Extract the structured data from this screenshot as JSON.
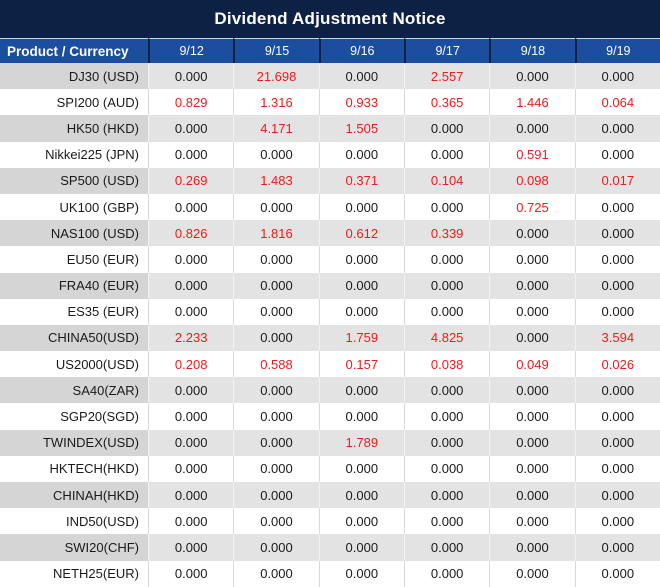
{
  "title": "Dividend Adjustment Notice",
  "table": {
    "product_header": "Product / Currency",
    "date_columns": [
      "9/12",
      "9/15",
      "9/16",
      "9/17",
      "9/18",
      "9/19"
    ],
    "rows": [
      {
        "product": "DJ30 (USD)",
        "values": [
          "0.000",
          "21.698",
          "0.000",
          "2.557",
          "0.000",
          "0.000"
        ]
      },
      {
        "product": "SPI200 (AUD)",
        "values": [
          "0.829",
          "1.316",
          "0.933",
          "0.365",
          "1.446",
          "0.064"
        ]
      },
      {
        "product": "HK50 (HKD)",
        "values": [
          "0.000",
          "4.171",
          "1.505",
          "0.000",
          "0.000",
          "0.000"
        ]
      },
      {
        "product": "Nikkei225 (JPN)",
        "values": [
          "0.000",
          "0.000",
          "0.000",
          "0.000",
          "0.591",
          "0.000"
        ]
      },
      {
        "product": "SP500 (USD)",
        "values": [
          "0.269",
          "1.483",
          "0.371",
          "0.104",
          "0.098",
          "0.017"
        ]
      },
      {
        "product": "UK100 (GBP)",
        "values": [
          "0.000",
          "0.000",
          "0.000",
          "0.000",
          "0.725",
          "0.000"
        ]
      },
      {
        "product": "NAS100 (USD)",
        "values": [
          "0.826",
          "1.816",
          "0.612",
          "0.339",
          "0.000",
          "0.000"
        ]
      },
      {
        "product": "EU50 (EUR)",
        "values": [
          "0.000",
          "0.000",
          "0.000",
          "0.000",
          "0.000",
          "0.000"
        ]
      },
      {
        "product": "FRA40 (EUR)",
        "values": [
          "0.000",
          "0.000",
          "0.000",
          "0.000",
          "0.000",
          "0.000"
        ]
      },
      {
        "product": "ES35 (EUR)",
        "values": [
          "0.000",
          "0.000",
          "0.000",
          "0.000",
          "0.000",
          "0.000"
        ]
      },
      {
        "product": "CHINA50(USD)",
        "values": [
          "2.233",
          "0.000",
          "1.759",
          "4.825",
          "0.000",
          "3.594"
        ]
      },
      {
        "product": "US2000(USD)",
        "values": [
          "0.208",
          "0.588",
          "0.157",
          "0.038",
          "0.049",
          "0.026"
        ]
      },
      {
        "product": "SA40(ZAR)",
        "values": [
          "0.000",
          "0.000",
          "0.000",
          "0.000",
          "0.000",
          "0.000"
        ]
      },
      {
        "product": "SGP20(SGD)",
        "values": [
          "0.000",
          "0.000",
          "0.000",
          "0.000",
          "0.000",
          "0.000"
        ]
      },
      {
        "product": "TWINDEX(USD)",
        "values": [
          "0.000",
          "0.000",
          "1.789",
          "0.000",
          "0.000",
          "0.000"
        ]
      },
      {
        "product": "HKTECH(HKD)",
        "values": [
          "0.000",
          "0.000",
          "0.000",
          "0.000",
          "0.000",
          "0.000"
        ]
      },
      {
        "product": "CHINAH(HKD)",
        "values": [
          "0.000",
          "0.000",
          "0.000",
          "0.000",
          "0.000",
          "0.000"
        ]
      },
      {
        "product": "IND50(USD)",
        "values": [
          "0.000",
          "0.000",
          "0.000",
          "0.000",
          "0.000",
          "0.000"
        ]
      },
      {
        "product": "SWI20(CHF)",
        "values": [
          "0.000",
          "0.000",
          "0.000",
          "0.000",
          "0.000",
          "0.000"
        ]
      },
      {
        "product": "NETH25(EUR)",
        "values": [
          "0.000",
          "0.000",
          "0.000",
          "0.000",
          "0.000",
          "0.000"
        ]
      }
    ]
  },
  "colors": {
    "title_bg": "#0d2145",
    "header_bg": "#1b4e9e",
    "header_text": "#ffffff",
    "row_gray": "#e3e3e3",
    "row_gray_product": "#d5d5d5",
    "row_white": "#ffffff",
    "value_text": "#1a1a1a",
    "value_nonzero": "#ee1c1c"
  }
}
